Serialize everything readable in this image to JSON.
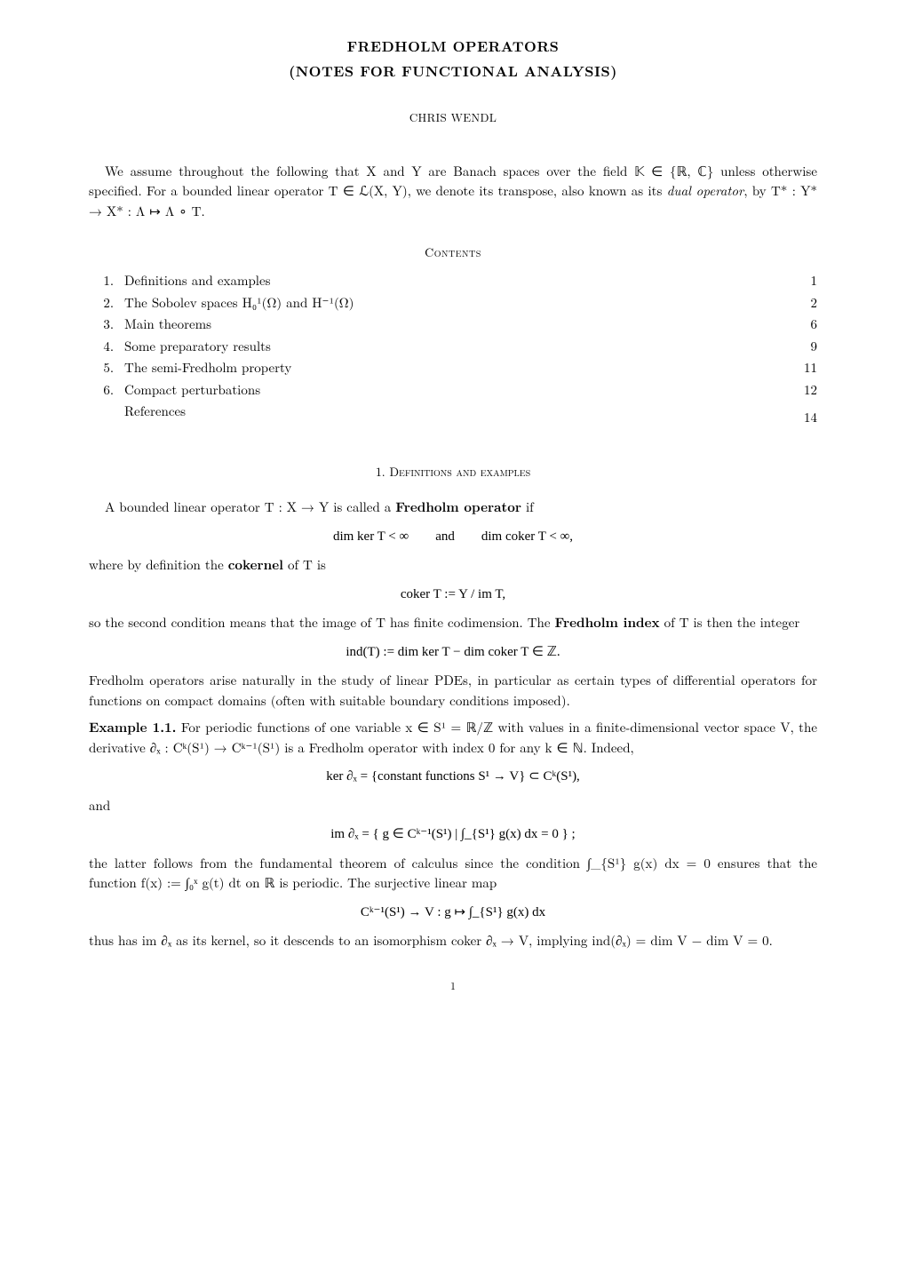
{
  "title_line1": "FREDHOLM OPERATORS",
  "title_line2": "(NOTES FOR FUNCTIONAL ANALYSIS)",
  "author": "CHRIS WENDL",
  "intro_text": "We assume throughout the following that X and Y are Banach spaces over the field 𝕂 ∈ {ℝ, ℂ} unless otherwise specified. For a bounded linear operator T ∈ ℒ(X, Y), we denote its transpose, also known as its ",
  "intro_dual": "dual operator",
  "intro_text2": ", by T* : Y* → X* : Λ ↦ Λ ∘ T.",
  "contents_label": "Contents",
  "toc": [
    {
      "num": "1.",
      "title": "Definitions and examples",
      "page": "1"
    },
    {
      "num": "2.",
      "title": "The Sobolev spaces H₀¹(Ω) and H⁻¹(Ω)",
      "page": "2"
    },
    {
      "num": "3.",
      "title": "Main theorems",
      "page": "6"
    },
    {
      "num": "4.",
      "title": "Some preparatory results",
      "page": "9"
    },
    {
      "num": "5.",
      "title": "The semi-Fredholm property",
      "page": "11"
    },
    {
      "num": "6.",
      "title": "Compact perturbations",
      "page": "12"
    },
    {
      "num": "",
      "title": "References",
      "page": "14"
    }
  ],
  "section1_heading": "1. Definitions and examples",
  "para1_a": "A bounded linear operator T : X → Y is called a ",
  "para1_b": "Fredholm operator",
  "para1_c": " if",
  "eq1": "dim ker T < ∞  and  dim coker T < ∞,",
  "para2_a": "where by definition the ",
  "para2_b": "cokernel",
  "para2_c": " of T is",
  "eq2": "coker T := Y / im T,",
  "para3_a": "so the second condition means that the image of T has finite codimension. The ",
  "para3_b": "Fredholm index",
  "para3_c": " of T is then the integer",
  "eq3": "ind(T) := dim ker T − dim coker T ∈ ℤ.",
  "para4": "Fredholm operators arise naturally in the study of linear PDEs, in particular as certain types of differential operators for functions on compact domains (often with suitable boundary conditions imposed).",
  "example_label": "Example 1.1.",
  "example_text1": " For periodic functions of one variable x ∈ S¹ = ℝ/ℤ with values in a finite-dimensional vector space V, the derivative ∂ₓ : Cᵏ(S¹) → Cᵏ⁻¹(S¹) is a Fredholm operator with index 0 for any k ∈ ℕ. Indeed,",
  "eq4": "ker ∂ₓ = {constant functions S¹ → V} ⊂ Cᵏ(S¹),",
  "and_label": "and",
  "eq5": "im ∂ₓ = { g ∈ Cᵏ⁻¹(S¹) | ∫_{S¹} g(x) dx = 0 } ;",
  "para5": "the latter follows from the fundamental theorem of calculus since the condition ∫_{S¹} g(x) dx = 0 ensures that the function f(x) := ∫₀ˣ g(t) dt on ℝ is periodic. The surjective linear map",
  "eq6": "Cᵏ⁻¹(S¹) → V : g ↦ ∫_{S¹} g(x) dx",
  "para6": "thus has im ∂ₓ as its kernel, so it descends to an isomorphism coker ∂ₓ → V, implying ind(∂ₓ) = dim V − dim V = 0.",
  "pagenum": "1"
}
